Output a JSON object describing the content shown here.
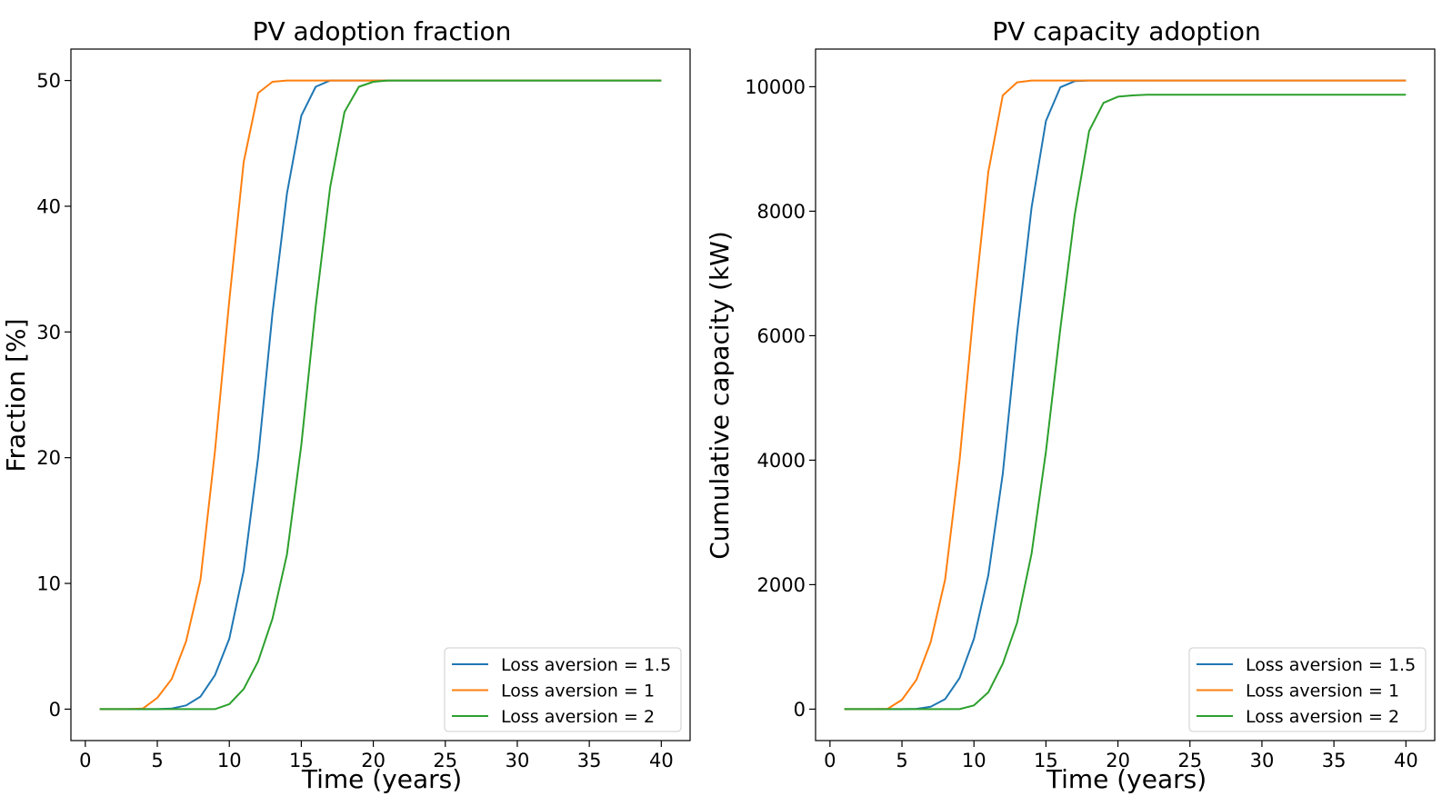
{
  "colors": {
    "series_blue": "#1f77b4",
    "series_orange": "#ff7f0e",
    "series_green": "#2ca02c",
    "axes": "#000000",
    "legend_border": "#cccccc"
  },
  "chart_data": [
    {
      "type": "line",
      "title": "PV adoption fraction",
      "xlabel": "Time (years)",
      "ylabel": "Fraction [%]",
      "xlim": [
        -1,
        42
      ],
      "ylim": [
        -2.5,
        52.5
      ],
      "xticks": [
        0,
        5,
        10,
        15,
        20,
        25,
        30,
        35,
        40
      ],
      "yticks": [
        0,
        10,
        20,
        30,
        40,
        50
      ],
      "grid": false,
      "legend_position": "lower-right",
      "x": [
        1,
        2,
        3,
        4,
        5,
        6,
        7,
        8,
        9,
        10,
        11,
        12,
        13,
        14,
        15,
        16,
        17,
        18,
        19,
        20,
        21,
        22,
        23,
        24,
        25,
        26,
        27,
        28,
        29,
        30,
        31,
        32,
        33,
        34,
        35,
        36,
        37,
        38,
        39,
        40
      ],
      "series": [
        {
          "name": "Loss aversion = 1.5",
          "color": "#1f77b4",
          "values": [
            0,
            0,
            0,
            0,
            0,
            0.05,
            0.3,
            1.0,
            2.7,
            5.6,
            11.0,
            20.0,
            31.5,
            41.0,
            47.2,
            49.5,
            50,
            50,
            50,
            50,
            50,
            50,
            50,
            50,
            50,
            50,
            50,
            50,
            50,
            50,
            50,
            50,
            50,
            50,
            50,
            50,
            50,
            50,
            50,
            50
          ]
        },
        {
          "name": "Loss aversion = 1",
          "color": "#ff7f0e",
          "values": [
            0,
            0,
            0,
            0.05,
            0.9,
            2.4,
            5.4,
            10.3,
            20.5,
            32.5,
            43.5,
            49.0,
            49.9,
            50,
            50,
            50,
            50,
            50,
            50,
            50,
            50,
            50,
            50,
            50,
            50,
            50,
            50,
            50,
            50,
            50,
            50,
            50,
            50,
            50,
            50,
            50,
            50,
            50,
            50,
            50
          ]
        },
        {
          "name": "Loss aversion = 2",
          "color": "#2ca02c",
          "values": [
            0,
            0,
            0,
            0,
            0,
            0,
            0,
            0,
            0,
            0.4,
            1.6,
            3.8,
            7.2,
            12.3,
            21.0,
            32.0,
            41.5,
            47.5,
            49.5,
            49.9,
            50,
            50,
            50,
            50,
            50,
            50,
            50,
            50,
            50,
            50,
            50,
            50,
            50,
            50,
            50,
            50,
            50,
            50,
            50,
            50
          ]
        }
      ]
    },
    {
      "type": "line",
      "title": "PV capacity adoption",
      "xlabel": "Time (years)",
      "ylabel": "Cumulative capacity (kW)",
      "xlim": [
        -1,
        42
      ],
      "ylim": [
        -505,
        10605
      ],
      "xticks": [
        0,
        5,
        10,
        15,
        20,
        25,
        30,
        35,
        40
      ],
      "yticks": [
        0,
        2000,
        4000,
        6000,
        8000,
        10000
      ],
      "grid": false,
      "legend_position": "lower-right",
      "x": [
        1,
        2,
        3,
        4,
        5,
        6,
        7,
        8,
        9,
        10,
        11,
        12,
        13,
        14,
        15,
        16,
        17,
        18,
        19,
        20,
        21,
        22,
        23,
        24,
        25,
        26,
        27,
        28,
        29,
        30,
        31,
        32,
        33,
        34,
        35,
        36,
        37,
        38,
        39,
        40
      ],
      "series": [
        {
          "name": "Loss aversion = 1.5",
          "color": "#1f77b4",
          "values": [
            0,
            0,
            0,
            0,
            0,
            5,
            40,
            160,
            500,
            1130,
            2150,
            3780,
            6050,
            8060,
            9450,
            9990,
            10090,
            10100,
            10100,
            10100,
            10100,
            10100,
            10100,
            10100,
            10100,
            10100,
            10100,
            10100,
            10100,
            10100,
            10100,
            10100,
            10100,
            10100,
            10100,
            10100,
            10100,
            10100,
            10100,
            10100
          ]
        },
        {
          "name": "Loss aversion = 1",
          "color": "#ff7f0e",
          "values": [
            0,
            0,
            0,
            5,
            150,
            470,
            1080,
            2080,
            4000,
            6450,
            8630,
            9860,
            10070,
            10100,
            10100,
            10100,
            10100,
            10100,
            10100,
            10100,
            10100,
            10100,
            10100,
            10100,
            10100,
            10100,
            10100,
            10100,
            10100,
            10100,
            10100,
            10100,
            10100,
            10100,
            10100,
            10100,
            10100,
            10100,
            10100,
            10100
          ]
        },
        {
          "name": "Loss aversion = 2",
          "color": "#2ca02c",
          "values": [
            0,
            0,
            0,
            0,
            0,
            0,
            0,
            0,
            0,
            60,
            270,
            730,
            1390,
            2500,
            4140,
            6110,
            7950,
            9290,
            9740,
            9840,
            9860,
            9870,
            9870,
            9870,
            9870,
            9870,
            9870,
            9870,
            9870,
            9870,
            9870,
            9870,
            9870,
            9870,
            9870,
            9870,
            9870,
            9870,
            9870,
            9870
          ]
        }
      ]
    }
  ]
}
